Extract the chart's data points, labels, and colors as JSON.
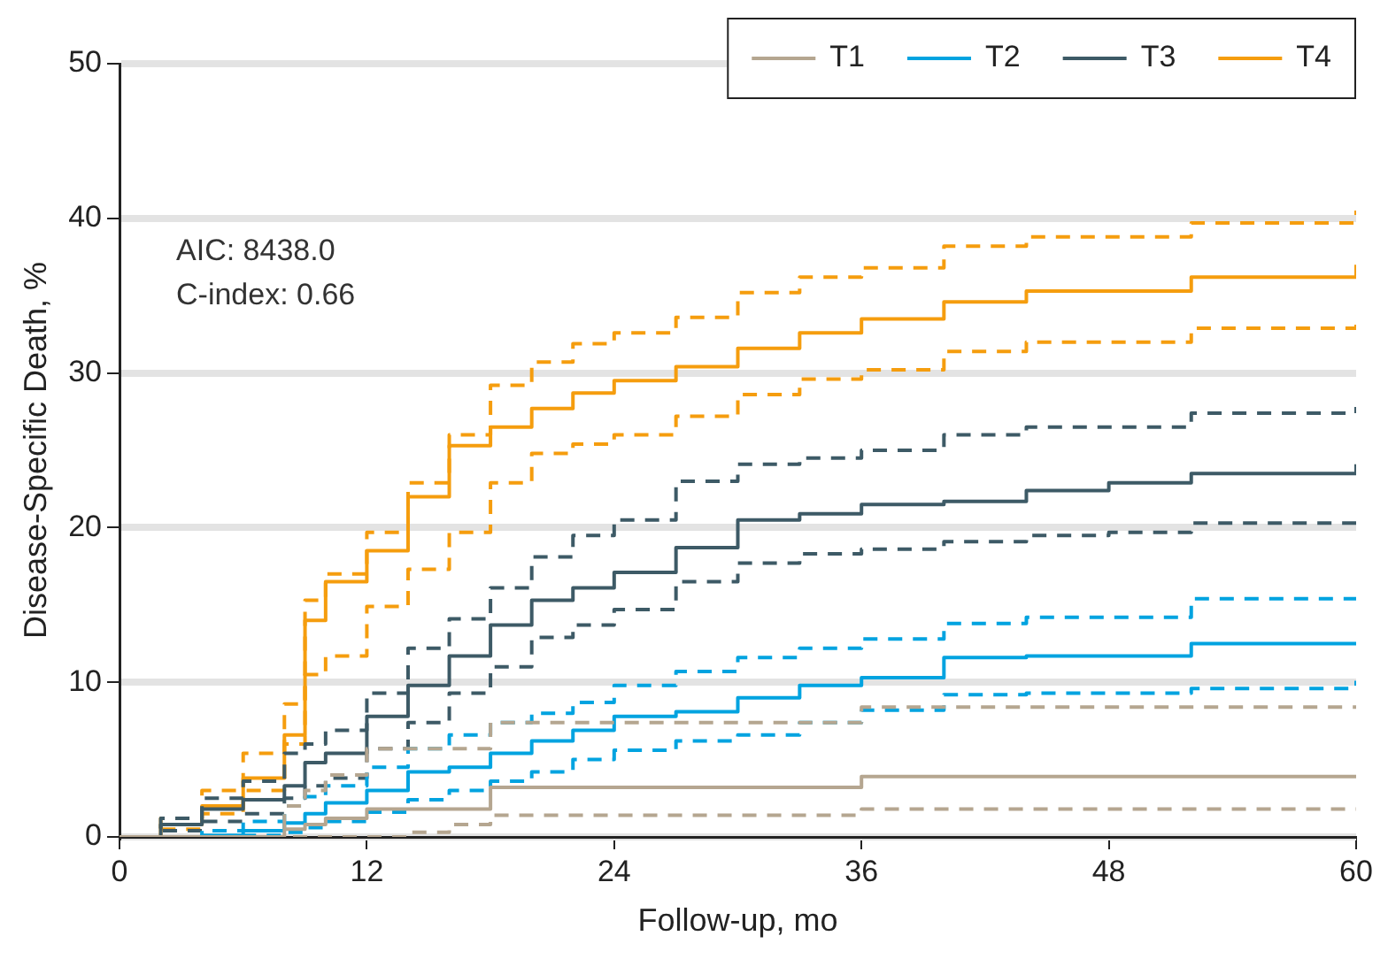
{
  "chart_data": {
    "type": "step",
    "xlabel": "Follow-up, mo",
    "ylabel": "Disease-Specific Death, %",
    "annotations": [
      "AIC: 8438.0",
      "C-index: 0.66"
    ],
    "x": [
      0,
      2,
      4,
      6,
      8,
      9,
      10,
      12,
      14,
      16,
      18,
      20,
      22,
      24,
      27,
      30,
      33,
      36,
      40,
      44,
      48,
      52,
      56,
      60
    ],
    "xlim": [
      0,
      60
    ],
    "xticks": [
      0,
      12,
      24,
      36,
      48,
      60
    ],
    "ylim": [
      0,
      50
    ],
    "yticks": [
      0,
      10,
      20,
      30,
      40,
      50
    ],
    "grid": "y",
    "legend": "top right",
    "series": [
      {
        "name": "T1",
        "color": "#b5a690",
        "line_style": "solid",
        "values": [
          0,
          0,
          0,
          0,
          0.5,
          0.8,
          1.2,
          1.8,
          1.8,
          1.8,
          3.2,
          3.2,
          3.2,
          3.2,
          3.2,
          3.2,
          3.2,
          3.9,
          3.9,
          3.9,
          3.9,
          3.9,
          3.9,
          3.9
        ]
      },
      {
        "color": "#b5a690",
        "line_style": "dashed",
        "values": [
          0,
          0,
          0,
          0,
          0,
          0,
          0,
          0,
          0.3,
          0.8,
          1.4,
          1.4,
          1.4,
          1.4,
          1.4,
          1.4,
          1.4,
          1.8,
          1.8,
          1.8,
          1.8,
          1.8,
          1.8,
          1.8
        ]
      },
      {
        "color": "#b5a690",
        "line_style": "dashed",
        "values": [
          0,
          0,
          0,
          0,
          2,
          3,
          4,
          5.7,
          5.7,
          5.7,
          7.4,
          7.4,
          7.4,
          7.4,
          7.4,
          7.4,
          7.4,
          8.4,
          8.4,
          8.4,
          8.4,
          8.4,
          8.4,
          8.4
        ]
      },
      {
        "name": "T2",
        "color": "#00a3e0",
        "line_style": "solid",
        "values": [
          0,
          0,
          0.1,
          0.4,
          0.9,
          1.5,
          2.2,
          3,
          4.2,
          4.5,
          5.4,
          6.2,
          6.9,
          7.8,
          8.1,
          9,
          9.8,
          10.3,
          11.6,
          11.7,
          11.7,
          12.5,
          12.5,
          12.5
        ]
      },
      {
        "color": "#00a3e0",
        "line_style": "dashed",
        "values": [
          0,
          0,
          0,
          0.1,
          0.3,
          0.6,
          1,
          1.6,
          2.4,
          3,
          3.6,
          4.2,
          5,
          5.6,
          6.2,
          6.6,
          7.4,
          8.2,
          9.2,
          9.3,
          9.3,
          9.6,
          9.6,
          10.1
        ]
      },
      {
        "color": "#00a3e0",
        "line_style": "dashed",
        "values": [
          0,
          0,
          0.4,
          1,
          2,
          2.6,
          3.3,
          4.5,
          5.7,
          6.6,
          7.4,
          8,
          8.7,
          9.8,
          10.7,
          11.6,
          12.2,
          12.8,
          13.8,
          14.2,
          14.2,
          15.4,
          15.4,
          15.5
        ]
      },
      {
        "name": "T3",
        "color": "#3d5a66",
        "line_style": "solid",
        "values": [
          0,
          0.8,
          1.8,
          2.4,
          3.3,
          4.8,
          5.4,
          7.8,
          9.8,
          11.7,
          13.7,
          15.3,
          16.1,
          17.1,
          18.7,
          20.5,
          20.9,
          21.5,
          21.7,
          22.4,
          22.9,
          23.5,
          23.5,
          24.1
        ]
      },
      {
        "color": "#3d5a66",
        "line_style": "dashed",
        "values": [
          0,
          0.4,
          1,
          1.5,
          2.5,
          3.3,
          3.8,
          5.7,
          7.4,
          9.3,
          11,
          12.9,
          13.7,
          14.7,
          16.5,
          17.7,
          18.3,
          18.6,
          19.1,
          19.5,
          19.7,
          20.3,
          20.3,
          20.6
        ]
      },
      {
        "color": "#3d5a66",
        "line_style": "dashed",
        "values": [
          0,
          1.2,
          2.5,
          3.6,
          5.4,
          6,
          6.9,
          9.3,
          12.2,
          14.1,
          16.1,
          18.1,
          19.5,
          20.5,
          23,
          24.1,
          24.5,
          25,
          26,
          26.5,
          26.5,
          27.4,
          27.4,
          27.8
        ]
      },
      {
        "name": "T4",
        "color": "#f59d0e",
        "line_style": "solid",
        "values": [
          0,
          0.8,
          2,
          3.8,
          6.6,
          14,
          16.5,
          18.5,
          22,
          25.3,
          26.5,
          27.7,
          28.7,
          29.5,
          30.4,
          31.6,
          32.6,
          33.5,
          34.6,
          35.3,
          35.3,
          36.2,
          36.2,
          37
        ]
      },
      {
        "color": "#f59d0e",
        "line_style": "dashed",
        "values": [
          0,
          0.5,
          1.5,
          3,
          6,
          10.5,
          11.7,
          14.9,
          17.3,
          19.7,
          22.9,
          24.8,
          25.4,
          26,
          27.2,
          28.6,
          29.6,
          30.2,
          31.4,
          32,
          32,
          32.9,
          32.9,
          33.5
        ]
      },
      {
        "color": "#f59d0e",
        "line_style": "dashed",
        "values": [
          0,
          1.2,
          3,
          5.4,
          8.6,
          15.3,
          17,
          19.7,
          22.9,
          26,
          29.2,
          30.7,
          31.9,
          32.6,
          33.6,
          35.2,
          36.2,
          36.8,
          38.2,
          38.8,
          38.8,
          39.7,
          39.7,
          40.5
        ]
      }
    ]
  }
}
